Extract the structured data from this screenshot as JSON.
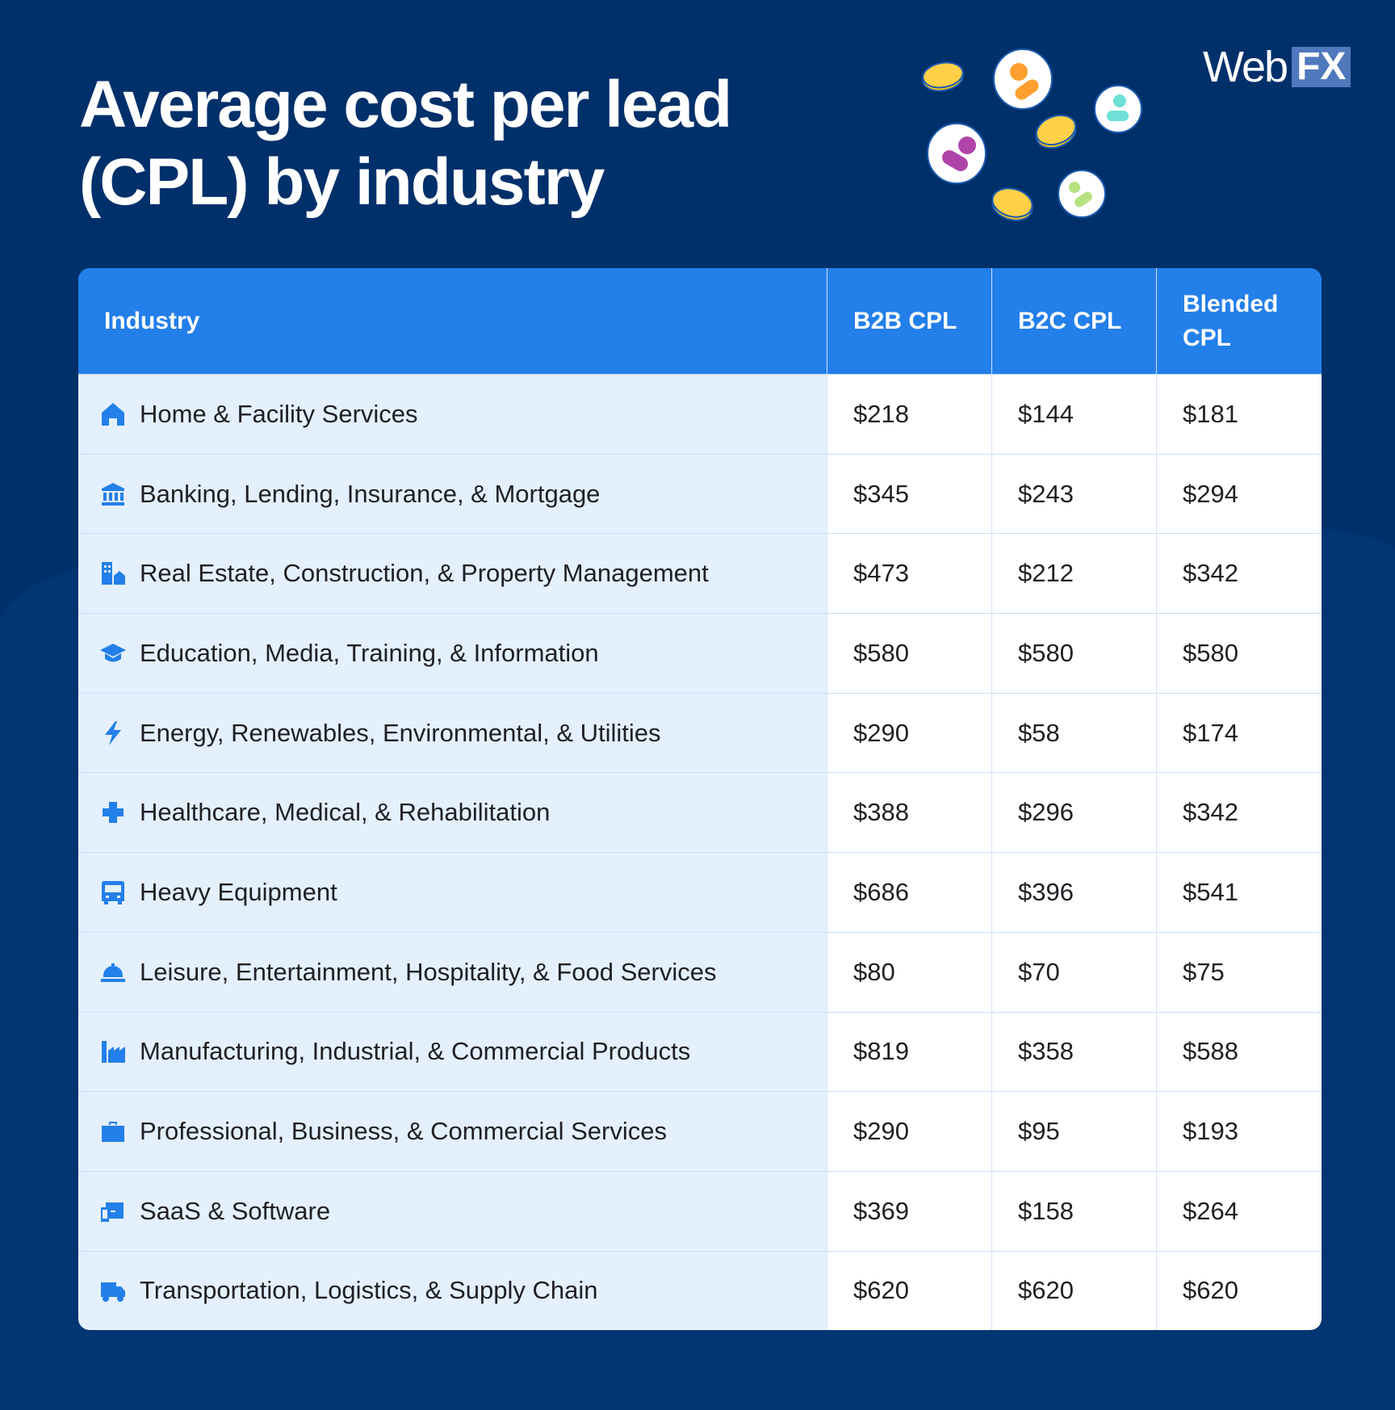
{
  "title_line1": "Average cost per lead",
  "title_line2": "(CPL) by industry",
  "logo": {
    "web": "Web",
    "fx": "FX"
  },
  "colors": {
    "background": "#00306a",
    "header": "#237fea",
    "industry_cell": "#e4f0fd",
    "icon": "#237fea"
  },
  "headers": [
    "Industry",
    "B2B CPL",
    "B2C CPL",
    "Blended CPL"
  ],
  "rows": [
    {
      "icon": "home-icon",
      "industry": "Home & Facility Services",
      "b2b": "$218",
      "b2c": "$144",
      "blended": "$181"
    },
    {
      "icon": "bank-icon",
      "industry": "Banking, Lending, Insurance, & Mortgage",
      "b2b": "$345",
      "b2c": "$243",
      "blended": "$294"
    },
    {
      "icon": "building-house-icon",
      "industry": "Real Estate, Construction, & Property Management",
      "b2b": "$473",
      "b2c": "$212",
      "blended": "$342"
    },
    {
      "icon": "graduation-cap-icon",
      "industry": "Education, Media, Training, & Information",
      "b2b": "$580",
      "b2c": "$580",
      "blended": "$580"
    },
    {
      "icon": "lightning-icon",
      "industry": "Energy, Renewables, Environmental, & Utilities",
      "b2b": "$290",
      "b2c": "$58",
      "blended": "$174"
    },
    {
      "icon": "medical-cross-icon",
      "industry": "Healthcare, Medical, & Rehabilitation",
      "b2b": "$388",
      "b2c": "$296",
      "blended": "$342"
    },
    {
      "icon": "vehicle-icon",
      "industry": "Heavy Equipment",
      "b2b": "$686",
      "b2c": "$396",
      "blended": "$541"
    },
    {
      "icon": "service-bell-icon",
      "industry": "Leisure, Entertainment, Hospitality, & Food Services",
      "b2b": "$80",
      "b2c": "$70",
      "blended": "$75"
    },
    {
      "icon": "factory-icon",
      "industry": "Manufacturing, Industrial, & Commercial Products",
      "b2b": "$819",
      "b2c": "$358",
      "blended": "$588"
    },
    {
      "icon": "briefcase-icon",
      "industry": "Professional, Business, & Commercial Services",
      "b2b": "$290",
      "b2c": "$95",
      "blended": "$193"
    },
    {
      "icon": "devices-icon",
      "industry": "SaaS & Software",
      "b2b": "$369",
      "b2c": "$158",
      "blended": "$264"
    },
    {
      "icon": "truck-icon",
      "industry": "Transportation, Logistics, & Supply Chain",
      "b2b": "$620",
      "b2c": "$620",
      "blended": "$620"
    }
  ]
}
